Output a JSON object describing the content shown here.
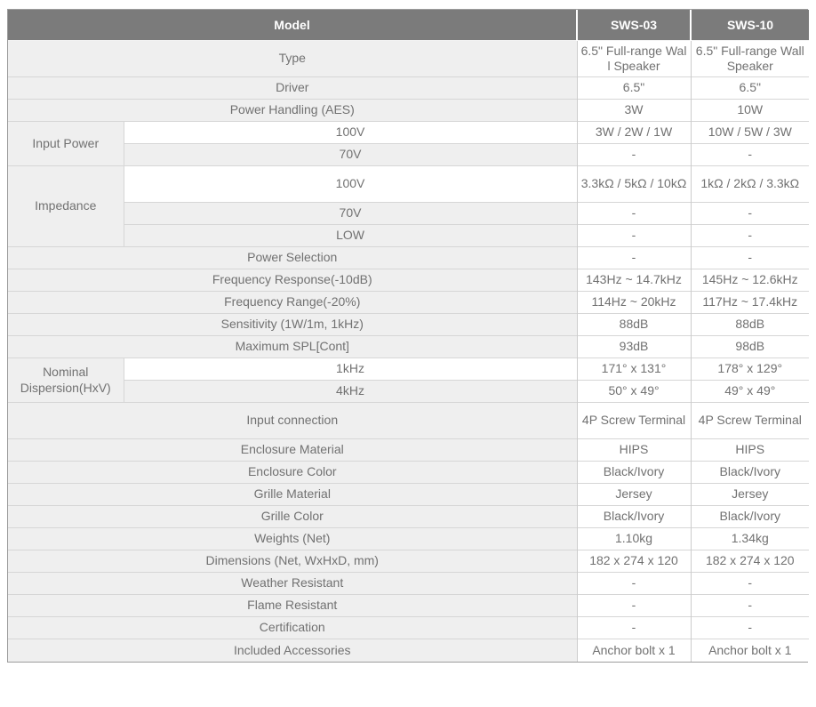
{
  "colors": {
    "header_bg": "#7b7b7b",
    "header_text": "#ffffff",
    "label_cell_bg": "#efefef",
    "value_cell_bg": "#ffffff",
    "row_border": "#d6d6d6",
    "outer_border": "#9d9d9d",
    "body_text": "#717171"
  },
  "table": {
    "columns": [
      "Model",
      "SWS-03",
      "SWS-10"
    ],
    "rows": [
      {
        "label": "Type",
        "bg": "gray",
        "tall": true,
        "values": [
          "6.5\" Full-range Wall Speaker",
          "6.5\" Full-range Wall Speaker"
        ]
      },
      {
        "label": "Driver",
        "bg": "gray",
        "values": [
          "6.5\"",
          "6.5\""
        ]
      },
      {
        "label": "Power Handling (AES)",
        "bg": "gray",
        "values": [
          "3W",
          "10W"
        ]
      },
      {
        "group": "Input Power",
        "group_span": 2,
        "in_group": true,
        "label": "100V",
        "bg": "white",
        "values": [
          "3W / 2W / 1W",
          "10W / 5W / 3W"
        ]
      },
      {
        "in_group": true,
        "label": "70V",
        "bg": "gray",
        "values": [
          "-",
          "-"
        ]
      },
      {
        "group": "Impedance",
        "group_span": 3,
        "in_group": true,
        "label": "100V",
        "bg": "white",
        "tall": true,
        "values": [
          "3.3kΩ / 5kΩ / 10kΩ",
          "1kΩ / 2kΩ / 3.3kΩ"
        ]
      },
      {
        "in_group": true,
        "label": "70V",
        "bg": "gray",
        "values": [
          "-",
          "-"
        ]
      },
      {
        "in_group": true,
        "label": "LOW",
        "bg": "gray",
        "values": [
          "-",
          "-"
        ]
      },
      {
        "label": "Power Selection",
        "bg": "gray",
        "values": [
          "-",
          "-"
        ]
      },
      {
        "label": "Frequency Response(-10dB)",
        "bg": "gray",
        "values": [
          "143Hz ~ 14.7kHz",
          "145Hz ~ 12.6kHz"
        ]
      },
      {
        "label": "Frequency Range(-20%)",
        "bg": "gray",
        "values": [
          "114Hz ~ 20kHz",
          "117Hz ~ 17.4kHz"
        ]
      },
      {
        "label": "Sensitivity (1W/1m, 1kHz)",
        "bg": "gray",
        "values": [
          "88dB",
          "88dB"
        ]
      },
      {
        "label": "Maximum SPL[Cont]",
        "bg": "gray",
        "values": [
          "93dB",
          "98dB"
        ]
      },
      {
        "group": "Nominal Dispersion(HxV)",
        "group_span": 2,
        "in_group": true,
        "label": "1kHz",
        "bg": "white",
        "values": [
          "171° x 131°",
          "178° x 129°"
        ]
      },
      {
        "in_group": true,
        "label": "4kHz",
        "bg": "gray",
        "values": [
          "50° x 49°",
          "49° x 49°"
        ]
      },
      {
        "label": "Input connection",
        "bg": "gray",
        "tall": true,
        "values": [
          "4P Screw Terminal",
          "4P Screw Terminal"
        ]
      },
      {
        "label": "Enclosure Material",
        "bg": "gray",
        "values": [
          "HIPS",
          "HIPS"
        ]
      },
      {
        "label": "Enclosure Color",
        "bg": "gray",
        "values": [
          "Black/Ivory",
          "Black/Ivory"
        ]
      },
      {
        "label": "Grille Material",
        "bg": "gray",
        "values": [
          "Jersey",
          "Jersey"
        ]
      },
      {
        "label": "Grille Color",
        "bg": "gray",
        "values": [
          "Black/Ivory",
          "Black/Ivory"
        ]
      },
      {
        "label": "Weights (Net)",
        "bg": "gray",
        "values": [
          "1.10kg",
          "1.34kg"
        ]
      },
      {
        "label": "Dimensions (Net, WxHxD, mm)",
        "bg": "gray",
        "values": [
          "182 x 274 x 120",
          "182 x 274 x 120"
        ]
      },
      {
        "label": "Weather Resistant",
        "bg": "gray",
        "values": [
          "-",
          "-"
        ]
      },
      {
        "label": "Flame Resistant",
        "bg": "gray",
        "values": [
          "-",
          "-"
        ]
      },
      {
        "label": "Certification",
        "bg": "gray",
        "values": [
          "-",
          "-"
        ]
      },
      {
        "label": "Included Accessories",
        "bg": "gray",
        "values": [
          "Anchor bolt x 1",
          "Anchor bolt x 1"
        ]
      }
    ]
  }
}
